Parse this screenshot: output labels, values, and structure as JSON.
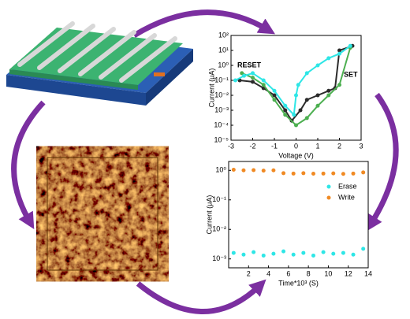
{
  "chart_data": [
    {
      "type": "line",
      "x_label": "Voltage (V)",
      "y_label": "Current (μA)",
      "log_y": true,
      "grid": false,
      "xlim": [
        -3,
        3
      ],
      "xticks": [
        -3,
        -2,
        -1,
        0,
        1,
        2,
        3
      ],
      "ylim": [
        1e-05,
        100
      ],
      "yticks": [
        {
          "value": 1e-05,
          "label": "10⁻⁵"
        },
        {
          "value": 0.0001,
          "label": "10⁻⁴"
        },
        {
          "value": 0.001,
          "label": "10⁻³"
        },
        {
          "value": 0.01,
          "label": "10⁻²"
        },
        {
          "value": 0.1,
          "label": "10⁻¹"
        },
        {
          "value": 1,
          "label": "10⁰"
        },
        {
          "value": 10,
          "label": "10¹"
        },
        {
          "value": 100,
          "label": "10²"
        }
      ],
      "annotations": [
        "RESET",
        "SET"
      ],
      "series": [
        {
          "color": "#2b2b2b",
          "x": [
            -2.6,
            -2,
            -1.5,
            -1,
            -0.5,
            -0.2,
            0.2,
            0.5,
            1,
            1.5,
            1.8,
            2,
            2.6
          ],
          "values": [
            0.1,
            0.08,
            0.03,
            0.01,
            0.001,
            0.0002,
            0.001,
            0.005,
            0.01,
            0.02,
            0.03,
            10,
            20
          ]
        },
        {
          "color": "#4caf50",
          "x": [
            -2.5,
            -2,
            -1.5,
            -1,
            -0.5,
            0,
            0.5,
            1,
            1.5,
            2,
            2.5
          ],
          "values": [
            0.3,
            0.15,
            0.05,
            0.005,
            0.0005,
            0.0001,
            0.0003,
            0.002,
            0.01,
            0.05,
            15
          ]
        },
        {
          "color": "#2ee6e6",
          "x": [
            -2.8,
            -2.4,
            -2,
            -1.5,
            -1,
            -0.5,
            -0.1,
            0,
            0.1,
            0.5,
            1,
            1.5,
            2,
            2.5
          ],
          "values": [
            0.1,
            0.2,
            0.3,
            0.1,
            0.02,
            0.002,
            0.0005,
            0.01,
            0.05,
            0.3,
            1,
            3,
            6,
            20
          ]
        }
      ]
    },
    {
      "type": "scatter",
      "x_label": "Time*10³ (S)",
      "y_label": "Current (μA)",
      "log_y": true,
      "grid": false,
      "legend": "upper right",
      "xlim": [
        0,
        14
      ],
      "xticks": [
        2,
        4,
        6,
        8,
        10,
        12,
        14
      ],
      "ylim": [
        0.0005,
        2
      ],
      "yticks": [
        {
          "value": 0.001,
          "label": "10⁻³"
        },
        {
          "value": 0.01,
          "label": "10⁻²"
        },
        {
          "value": 0.1,
          "label": "10⁻¹"
        },
        {
          "value": 1,
          "label": "10⁰"
        }
      ],
      "series": [
        {
          "name": "Erase",
          "color": "#2ee6e6",
          "x": [
            0.5,
            1.5,
            2.5,
            3.5,
            4.5,
            5.5,
            6.5,
            7.5,
            8.5,
            9.5,
            10.5,
            11.5,
            12.5,
            13.5
          ],
          "values": [
            0.0016,
            0.0014,
            0.0017,
            0.0013,
            0.0015,
            0.0018,
            0.0014,
            0.0016,
            0.0013,
            0.0017,
            0.0015,
            0.0016,
            0.0014,
            0.0022
          ]
        },
        {
          "name": "Write",
          "color": "#f08a24",
          "x": [
            0.5,
            1.5,
            2.5,
            3.5,
            4.5,
            5.5,
            6.5,
            7.5,
            8.5,
            9.5,
            10.5,
            11.5,
            12.5,
            13.5
          ],
          "values": [
            1.05,
            1.0,
            1.02,
            0.98,
            1.0,
            0.8,
            0.78,
            0.8,
            0.77,
            0.78,
            0.79,
            0.76,
            0.78,
            0.85
          ]
        }
      ]
    }
  ]
}
